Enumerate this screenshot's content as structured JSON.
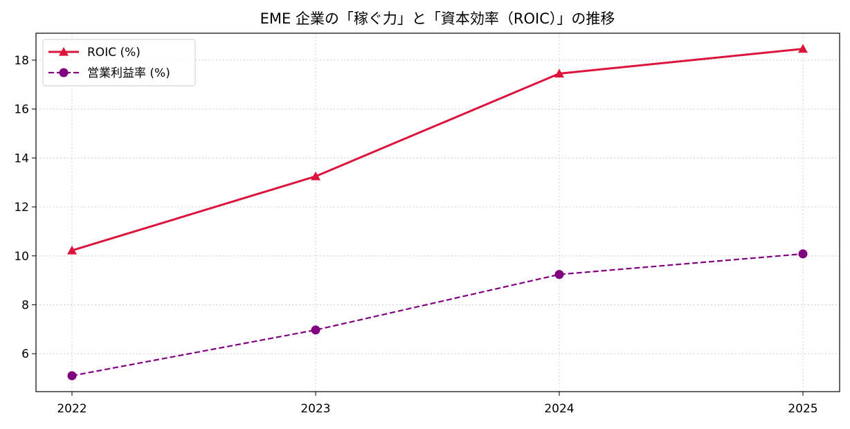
{
  "chart_data": {
    "type": "line",
    "title": "EME 企業の「稼ぐ力」と「資本効率（ROIC）」の推移",
    "xlabel": "",
    "ylabel": "",
    "x": [
      "2022",
      "2023",
      "2024",
      "2025"
    ],
    "yticks": [
      "6",
      "8",
      "10",
      "12",
      "14",
      "16",
      "18"
    ],
    "ylim": [
      4.45,
      19.1
    ],
    "grid": true,
    "legend_position": "upper-left",
    "series": [
      {
        "name": "ROIC (%)",
        "values": [
          10.22,
          13.25,
          17.45,
          18.46
        ],
        "color": "#dc143c",
        "line_style": "solid",
        "marker": "triangle"
      },
      {
        "name": "営業利益率 (%)",
        "values": [
          5.1,
          6.97,
          9.24,
          10.08
        ],
        "color": "#800080",
        "line_style": "dashed",
        "marker": "circle"
      }
    ]
  }
}
